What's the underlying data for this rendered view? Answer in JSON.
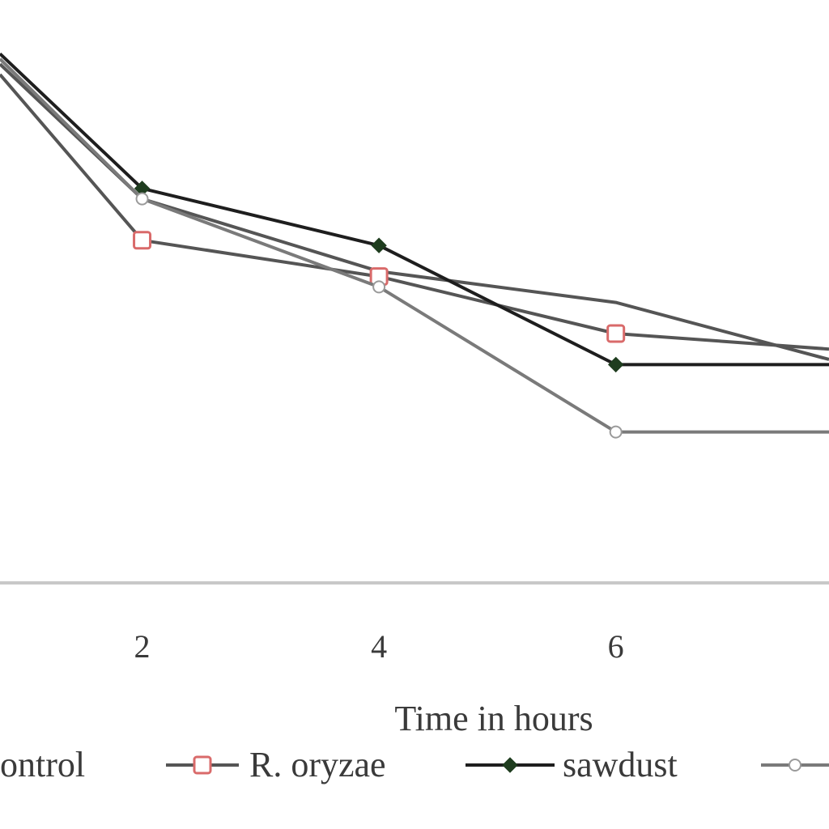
{
  "chart_data": {
    "type": "line",
    "title": "",
    "xlabel": "Time in hours",
    "ylabel": "",
    "x_ticks": [
      "2",
      "4",
      "6"
    ],
    "xlim": [
      0.8,
      7.8
    ],
    "ylim": [
      0,
      100
    ],
    "grid": false,
    "legend_position": "bottom",
    "series": [
      {
        "name": "Control",
        "legend_text": "ontrol",
        "marker": "none",
        "color": "#555555",
        "x": [
          0.8,
          2,
          4,
          6,
          7.8
        ],
        "y": [
          97,
          71,
          57,
          51,
          40
        ]
      },
      {
        "name": "R. oryzae",
        "legend_text": "R. oryzae",
        "marker": "open-square",
        "color": "#555555",
        "marker_color": "#d96a6a",
        "x": [
          0.8,
          2,
          4,
          6,
          7.8
        ],
        "y": [
          95,
          63,
          56,
          45,
          42
        ]
      },
      {
        "name": "sawdust",
        "legend_text": "sawdust",
        "marker": "filled-diamond",
        "color": "#1e1e1e",
        "marker_color": "#1f3d1f",
        "x": [
          0.8,
          2,
          4,
          6,
          7.8
        ],
        "y": [
          99,
          73,
          62,
          39,
          39
        ]
      },
      {
        "name": "",
        "legend_text": "",
        "marker": "open-circle",
        "color": "#7a7a7a",
        "marker_color": "#9a9a9a",
        "x": [
          0.8,
          2,
          4,
          6,
          7.8
        ],
        "y": [
          98,
          71,
          54,
          26,
          26
        ]
      }
    ]
  }
}
